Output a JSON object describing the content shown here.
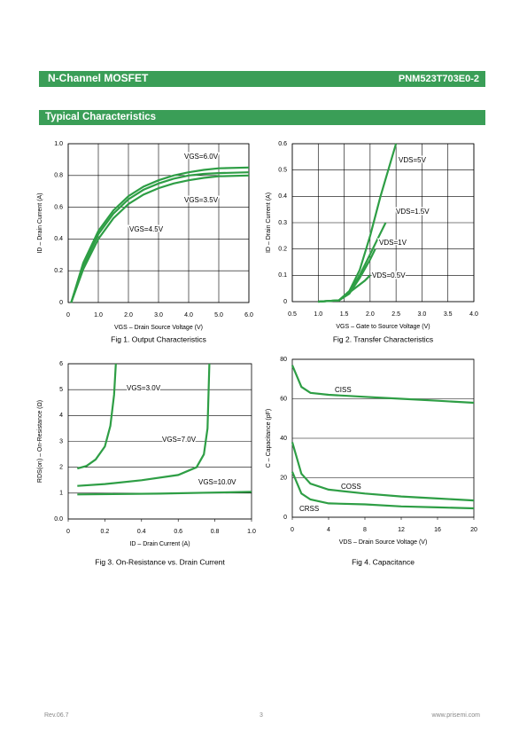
{
  "header": {
    "left": "N-Channel MOSFET",
    "right": "PNM523T703E0-2"
  },
  "section": "Typical Characteristics",
  "footer": {
    "revision": "Rev.06.7",
    "page": 3,
    "website": "www.prisemi.com"
  },
  "chart_data": [
    {
      "type": "line",
      "caption": "Fig 1. Output Characteristics",
      "xlabel": "VGS – Drain Source Voltage (V)",
      "ylabel": "ID – Drain Current (A)",
      "xlim": [
        0,
        6
      ],
      "xticks": [
        0,
        {
          "value": 1,
          "label": "1.0"
        },
        {
          "value": 2,
          "label": "2.0"
        },
        {
          "value": 3,
          "label": "3.0"
        },
        {
          "value": 4,
          "label": "4.0"
        },
        {
          "value": 5,
          "label": "5.0"
        },
        {
          "value": 6,
          "label": "6.0"
        }
      ],
      "ylim": [
        0,
        1
      ],
      "yticks": [
        0,
        0.2,
        0.4,
        0.6,
        0.8,
        {
          "value": 1,
          "label": "1.0"
        }
      ],
      "grid": "both",
      "series": [
        {
          "name": "VGS=6.0V",
          "color": "#2e9e45",
          "x": [
            0.1,
            0.5,
            1,
            1.5,
            2,
            2.5,
            3,
            3.5,
            4,
            4.5,
            5,
            6
          ],
          "values": [
            0,
            0.25,
            0.45,
            0.58,
            0.67,
            0.73,
            0.77,
            0.8,
            0.82,
            0.835,
            0.845,
            0.85
          ]
        },
        {
          "name": "VGS=3.5V",
          "color": "#2e9e45",
          "x": [
            0.1,
            0.5,
            1,
            1.5,
            2,
            2.5,
            3,
            3.5,
            4,
            4.5,
            5,
            6
          ],
          "values": [
            0,
            0.21,
            0.4,
            0.53,
            0.62,
            0.68,
            0.72,
            0.75,
            0.77,
            0.785,
            0.795,
            0.8
          ]
        },
        {
          "name": "VGS=4.5V",
          "color": "#2e9e45",
          "x": [
            0.1,
            0.5,
            1,
            1.5,
            2,
            2.5,
            3,
            3.5,
            4,
            4.5,
            5,
            6
          ],
          "values": [
            0,
            0.23,
            0.43,
            0.56,
            0.65,
            0.71,
            0.75,
            0.78,
            0.8,
            0.81,
            0.815,
            0.82
          ]
        }
      ]
    },
    {
      "type": "line",
      "caption": "Fig 2. Transfer Characteristics",
      "xlabel": "VGS – Gate to Source Voltage (V)",
      "ylabel": "ID – Drain Current (A)",
      "xlim": [
        0.5,
        4
      ],
      "xticks": [
        0.5,
        {
          "value": 1,
          "label": "1.0"
        },
        1.5,
        {
          "value": 2,
          "label": "2.0"
        },
        2.5,
        {
          "value": 3,
          "label": "3.0"
        },
        3.5,
        {
          "value": 4,
          "label": "4.0"
        }
      ],
      "ylim": [
        0,
        0.6
      ],
      "yticks": [
        0,
        0.1,
        0.2,
        0.3,
        0.4,
        0.5,
        0.6
      ],
      "grid": "both",
      "series": [
        {
          "name": "VDS=5V",
          "color": "#2e9e45",
          "x": [
            1,
            1.4,
            1.6,
            1.8,
            2,
            2.2,
            2.5
          ],
          "values": [
            0,
            0.005,
            0.04,
            0.12,
            0.25,
            0.4,
            0.6
          ]
        },
        {
          "name": "VDS=1.5V",
          "color": "#2e9e45",
          "x": [
            1,
            1.4,
            1.6,
            1.8,
            2,
            2.15,
            2.3
          ],
          "values": [
            0,
            0.005,
            0.035,
            0.1,
            0.18,
            0.24,
            0.3
          ]
        },
        {
          "name": "VDS=1V",
          "color": "#2e9e45",
          "x": [
            1,
            1.4,
            1.6,
            1.8,
            2,
            2.1
          ],
          "values": [
            0,
            0.005,
            0.03,
            0.09,
            0.16,
            0.2
          ]
        },
        {
          "name": "VDS=0.5V",
          "color": "#2e9e45",
          "x": [
            1,
            1.4,
            1.5,
            1.7,
            1.9,
            2
          ],
          "values": [
            0,
            0.005,
            0.02,
            0.05,
            0.08,
            0.1
          ]
        }
      ]
    },
    {
      "type": "line",
      "caption": "Fig 3. On-Resistance vs. Drain Current",
      "xlabel": "ID – Drain Current (A)",
      "ylabel": "RDS(on) – On-Resistance (Ω)",
      "xlim": [
        0,
        1
      ],
      "xticks": [
        0,
        0.2,
        0.4,
        0.6,
        0.8,
        {
          "value": 1,
          "label": "1.0"
        }
      ],
      "ylim": [
        0,
        6
      ],
      "yticks": [
        {
          "value": 0,
          "label": "0.0"
        },
        1,
        2,
        3,
        4,
        5,
        6
      ],
      "grid": "y",
      "series": [
        {
          "name": "VGS=3.0V",
          "color": "#2e9e45",
          "x": [
            0.05,
            0.1,
            0.15,
            0.2,
            0.23,
            0.25,
            0.26
          ],
          "values": [
            1.95,
            2.05,
            2.3,
            2.8,
            3.6,
            4.8,
            6
          ]
        },
        {
          "name": "VGS=7.0V",
          "color": "#2e9e45",
          "x": [
            0.05,
            0.2,
            0.4,
            0.6,
            0.7,
            0.74,
            0.76,
            0.77
          ],
          "values": [
            1.28,
            1.35,
            1.5,
            1.7,
            2,
            2.5,
            3.5,
            6
          ]
        },
        {
          "name": "VGS=10.0V",
          "color": "#2e9e45",
          "x": [
            0.05,
            0.5,
            1
          ],
          "values": [
            0.95,
            0.98,
            1.05
          ]
        }
      ]
    },
    {
      "type": "line",
      "caption": "Fig 4. Capacitance",
      "xlabel": "VDS – Drain Source Voltage (V)",
      "ylabel": "C – Capacitance (pF)",
      "xlim": [
        0,
        20
      ],
      "xticks": [
        0,
        4,
        8,
        12,
        16,
        20
      ],
      "ylim": [
        0,
        80
      ],
      "yticks": [
        0,
        20,
        40,
        60,
        80
      ],
      "grid": "y",
      "series": [
        {
          "name": "CISS",
          "color": "#2e9e45",
          "x": [
            0,
            1,
            2,
            4,
            8,
            12,
            16,
            20
          ],
          "values": [
            77,
            66,
            63,
            62,
            61,
            60,
            59,
            58
          ]
        },
        {
          "name": "COSS",
          "color": "#2e9e45",
          "x": [
            0,
            1,
            2,
            4,
            8,
            12,
            16,
            20
          ],
          "values": [
            38,
            22,
            17,
            14,
            12,
            10.5,
            9.5,
            8.5
          ]
        },
        {
          "name": "CRSS",
          "color": "#2e9e45",
          "x": [
            0,
            1,
            2,
            4,
            8,
            12,
            16,
            20
          ],
          "values": [
            23,
            12,
            9,
            7,
            6.5,
            5.5,
            5,
            4.5
          ]
        }
      ]
    }
  ]
}
